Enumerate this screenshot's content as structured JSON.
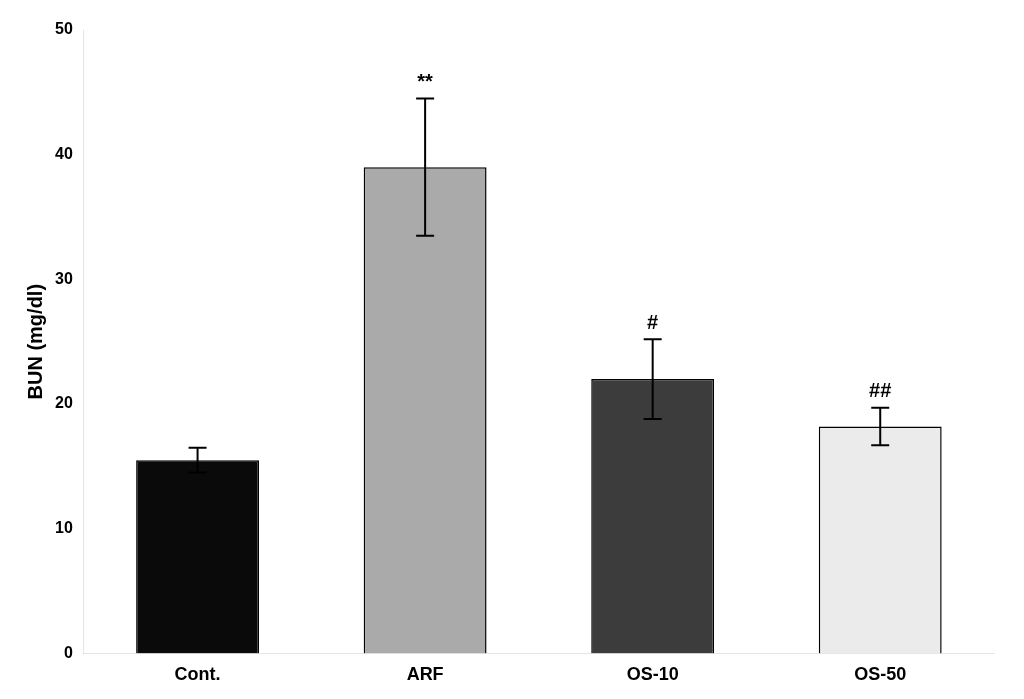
{
  "chart_data": {
    "type": "bar",
    "categories": [
      "Cont.",
      "ARF",
      "OS-10",
      "OS-50"
    ],
    "values": [
      15.5,
      39.0,
      22.0,
      18.2
    ],
    "errors": [
      1.0,
      5.5,
      3.2,
      1.5
    ],
    "colors": [
      "#0a0a0a",
      "#aaaaaa",
      "#3c3c3c",
      "#ebebeb"
    ],
    "annotations": [
      null,
      "**",
      "#",
      "##"
    ],
    "ylabel": "BUN (mg/dl)",
    "ylim": [
      0,
      50
    ],
    "yticks": [
      0,
      10,
      20,
      30,
      40,
      50
    ],
    "grid": false
  }
}
